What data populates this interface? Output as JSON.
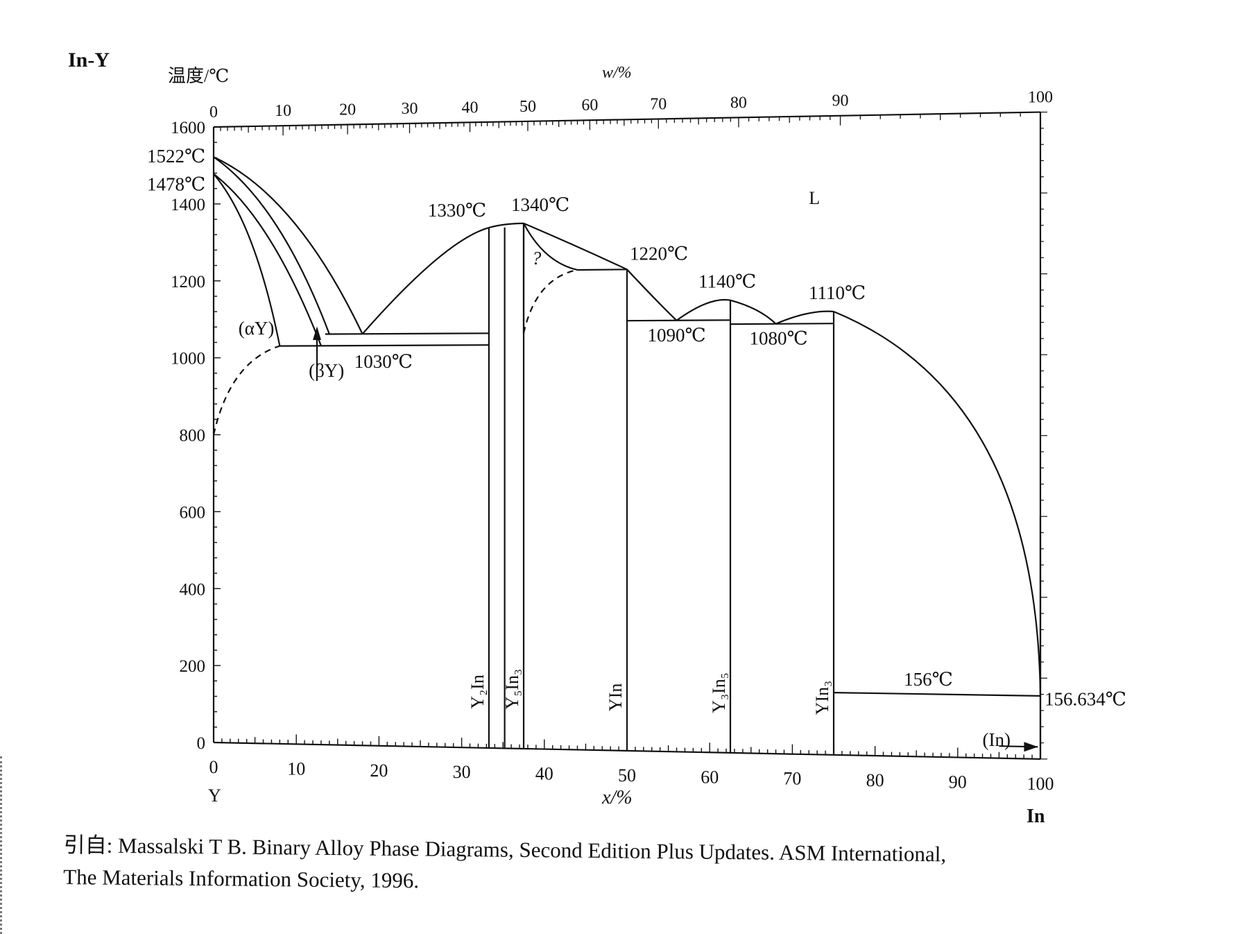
{
  "figure": {
    "title": "In-Y",
    "left_axis_title": "温度/℃",
    "top_axis_title": "w/%",
    "top_ticks": [
      "0",
      "10",
      "20",
      "30",
      "40",
      "50",
      "60",
      "70",
      "80",
      "90",
      "100"
    ],
    "top_ticks_position_at_x": [
      0,
      8.4,
      16.2,
      23.7,
      31.0,
      38.0,
      45.5,
      53.8,
      63.5,
      75.8,
      100
    ],
    "bottom_axis_title": "x/%",
    "bottom_ticks": [
      "0",
      "10",
      "20",
      "30",
      "40",
      "50",
      "60",
      "70",
      "80",
      "90",
      "100"
    ],
    "bottom_end_labels": {
      "left": "Y",
      "right": "In"
    },
    "y_ticks": [
      "0",
      "200",
      "400",
      "600",
      "800",
      "1000",
      "1200",
      "1400",
      "1600"
    ],
    "caption_line1": "引自: Massalski T B.  Binary Alloy Phase Diagrams, Second Edition Plus Updates.  ASM International,",
    "caption_line2": "The Materials Information Society, 1996."
  },
  "chart_data": {
    "type": "phase-diagram",
    "title": "In-Y",
    "xlabel": "x/%",
    "ylabel": "温度/℃",
    "top_xlabel": "w/%",
    "xlim": [
      0,
      100
    ],
    "ylim": [
      0,
      1600
    ],
    "temperature_labels": [
      {
        "text": "1522℃",
        "x": 0,
        "y": 1522
      },
      {
        "text": "1478℃",
        "x": 0,
        "y": 1478
      },
      {
        "text": "1330℃",
        "x": 33.3,
        "y": 1330
      },
      {
        "text": "1340℃",
        "x": 37.5,
        "y": 1340
      },
      {
        "text": "1220℃",
        "x": 50,
        "y": 1220
      },
      {
        "text": "1140℃",
        "x": 62.5,
        "y": 1140
      },
      {
        "text": "1110℃",
        "x": 75,
        "y": 1110
      },
      {
        "text": "1090℃",
        "x": 56,
        "y": 1090
      },
      {
        "text": "1080℃",
        "x": 68,
        "y": 1080
      },
      {
        "text": "1030℃",
        "x": 16,
        "y": 1030
      },
      {
        "text": "156℃",
        "x": 86,
        "y": 156
      },
      {
        "text": "156.634℃",
        "x": 100,
        "y": 156.634
      }
    ],
    "phase_labels": [
      {
        "text": "L",
        "x": 72,
        "y": 1380
      },
      {
        "text": "(αY)",
        "x": 3,
        "y": 1060
      },
      {
        "text": "(βY)",
        "x": 11.5,
        "y": 950
      },
      {
        "text": "?",
        "x": 38.5,
        "y": 1235
      },
      {
        "text": "(In)",
        "x": 93,
        "y": 30
      }
    ],
    "compounds": [
      {
        "label": "Y₂In",
        "x": 33.3
      },
      {
        "label": "Y₅In₃",
        "x": 37.5
      },
      {
        "label": "YIn",
        "x": 50
      },
      {
        "label": "Y₃In₅",
        "x": 62.5
      },
      {
        "label": "YIn₃",
        "x": 75
      }
    ],
    "liquidus": [
      {
        "from": [
          0,
          1522
        ],
        "to": [
          18,
          1060
        ]
      },
      {
        "from": [
          18,
          1060
        ],
        "to": [
          33.3,
          1330
        ]
      },
      {
        "from": [
          37.5,
          1340
        ],
        "to": [
          50,
          1220
        ]
      },
      {
        "from": [
          50,
          1220
        ],
        "to": [
          56,
          1090
        ]
      },
      {
        "from": [
          56,
          1090
        ],
        "to": [
          62.5,
          1140
        ]
      },
      {
        "from": [
          62.5,
          1140
        ],
        "to": [
          68,
          1080
        ]
      },
      {
        "from": [
          68,
          1080
        ],
        "to": [
          75,
          1110
        ]
      },
      {
        "from": [
          75,
          1110
        ],
        "to": [
          100,
          156.634
        ]
      }
    ],
    "invariant_lines": [
      {
        "y": 1030,
        "x": [
          8,
          33.3
        ]
      },
      {
        "y": 1060,
        "x": [
          13.5,
          33.3
        ]
      },
      {
        "y": 1090,
        "x": [
          50,
          62.5
        ]
      },
      {
        "y": 1080,
        "x": [
          62.5,
          75
        ]
      },
      {
        "y": 1220,
        "x": [
          44,
          50
        ]
      },
      {
        "y": 156,
        "x": [
          75,
          100
        ]
      }
    ]
  }
}
